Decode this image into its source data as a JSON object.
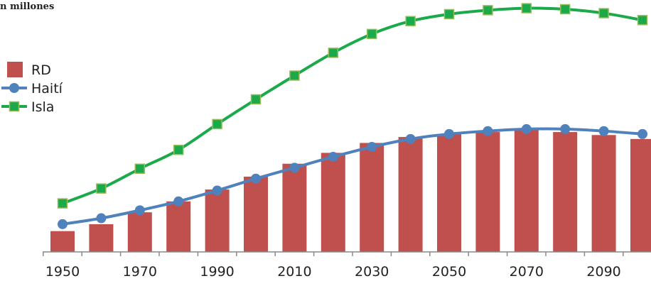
{
  "chart_data": {
    "type": "bar",
    "title": "n millones",
    "xlabel": "",
    "ylabel": "",
    "x": [
      1950,
      1960,
      1970,
      1980,
      1990,
      2000,
      2010,
      2020,
      2030,
      2040,
      2050,
      2060,
      2070,
      2080,
      2090,
      2100
    ],
    "tick_labels": [
      "1950",
      "1970",
      "1990",
      "2010",
      "2030",
      "2050",
      "2070",
      "2090"
    ],
    "ylim": [
      0,
      25
    ],
    "grid": false,
    "legend_position": "left",
    "series": [
      {
        "name": "RD",
        "kind": "bar",
        "color": "#c0504d",
        "values": [
          2.1,
          2.8,
          4.0,
          5.1,
          6.3,
          7.6,
          8.9,
          10.0,
          11.0,
          11.6,
          11.9,
          12.1,
          12.3,
          12.1,
          11.8,
          11.4
        ]
      },
      {
        "name": "Haití",
        "kind": "line",
        "marker": "circle",
        "color": "#4f81bd",
        "values": [
          2.8,
          3.4,
          4.2,
          5.1,
          6.2,
          7.4,
          8.5,
          9.6,
          10.6,
          11.4,
          11.9,
          12.2,
          12.4,
          12.4,
          12.2,
          11.9
        ]
      },
      {
        "name": "Isla",
        "kind": "line",
        "marker": "square",
        "color": "#1aaa4a",
        "values": [
          4.9,
          6.4,
          8.4,
          10.3,
          12.9,
          15.4,
          17.8,
          20.1,
          22.0,
          23.3,
          24.0,
          24.4,
          24.6,
          24.5,
          24.1,
          23.4
        ]
      }
    ]
  }
}
